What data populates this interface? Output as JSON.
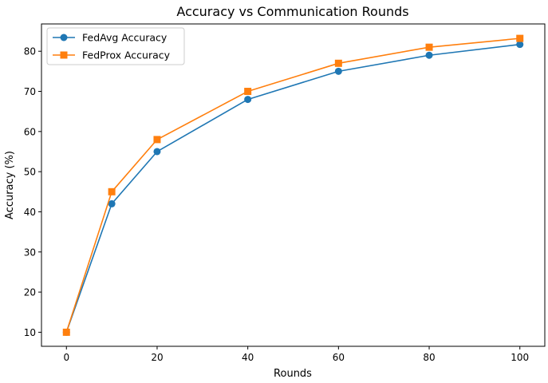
{
  "chart_data": {
    "type": "line",
    "title": "Accuracy vs Communication Rounds",
    "xlabel": "Rounds",
    "ylabel": "Accuracy (%)",
    "xlim": [
      -5.5,
      105.5
    ],
    "ylim": [
      6.5,
      86.8
    ],
    "xticks": [
      0,
      20,
      40,
      60,
      80,
      100
    ],
    "yticks": [
      10,
      20,
      30,
      40,
      50,
      60,
      70,
      80
    ],
    "x": [
      0,
      10,
      20,
      40,
      60,
      80,
      100
    ],
    "series": [
      {
        "name": "FedAvg Accuracy",
        "values": [
          10,
          42,
          55,
          68,
          75,
          79,
          81.7
        ],
        "color": "#1f77b4",
        "marker": "circle"
      },
      {
        "name": "FedProx Accuracy",
        "values": [
          10,
          45,
          58,
          70,
          77,
          81,
          83.2
        ],
        "color": "#ff7f0e",
        "marker": "square"
      }
    ],
    "legend": "upper-left",
    "grid": false
  }
}
